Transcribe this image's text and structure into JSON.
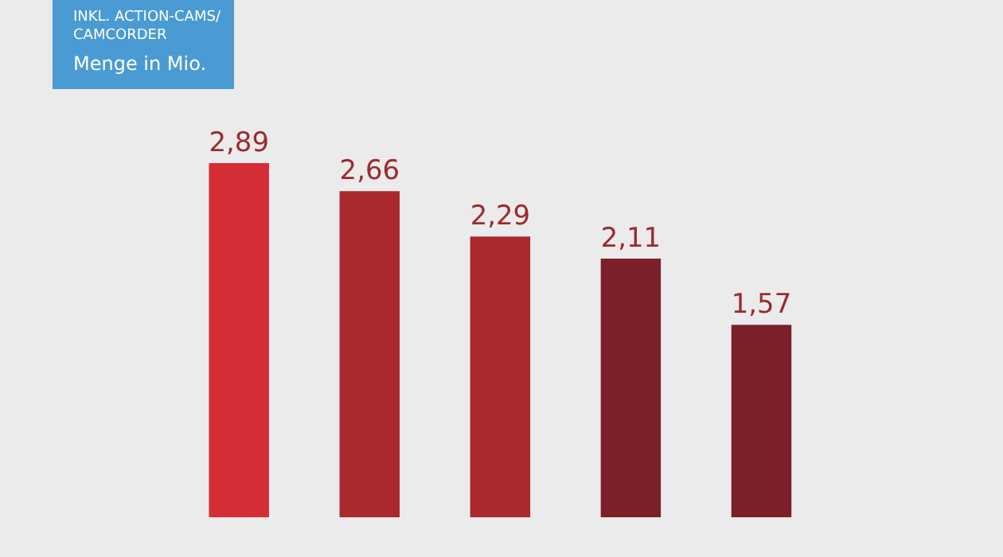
{
  "chart_data": {
    "type": "bar",
    "categories": [
      null,
      null,
      null,
      null,
      null
    ],
    "values": [
      2.89,
      2.66,
      2.29,
      2.11,
      1.57
    ],
    "colors": [
      "#d42d35",
      "#a9292c",
      "#a9292c",
      "#7b1f2a",
      "#7b1f2a"
    ],
    "value_labels": [
      "2,89",
      "2,66",
      "2,29",
      "2,11",
      "1,57"
    ],
    "annotations": [
      "INKL. ACTION-CAMS/\nCAMCORDER",
      "Menge in Mio."
    ]
  }
}
